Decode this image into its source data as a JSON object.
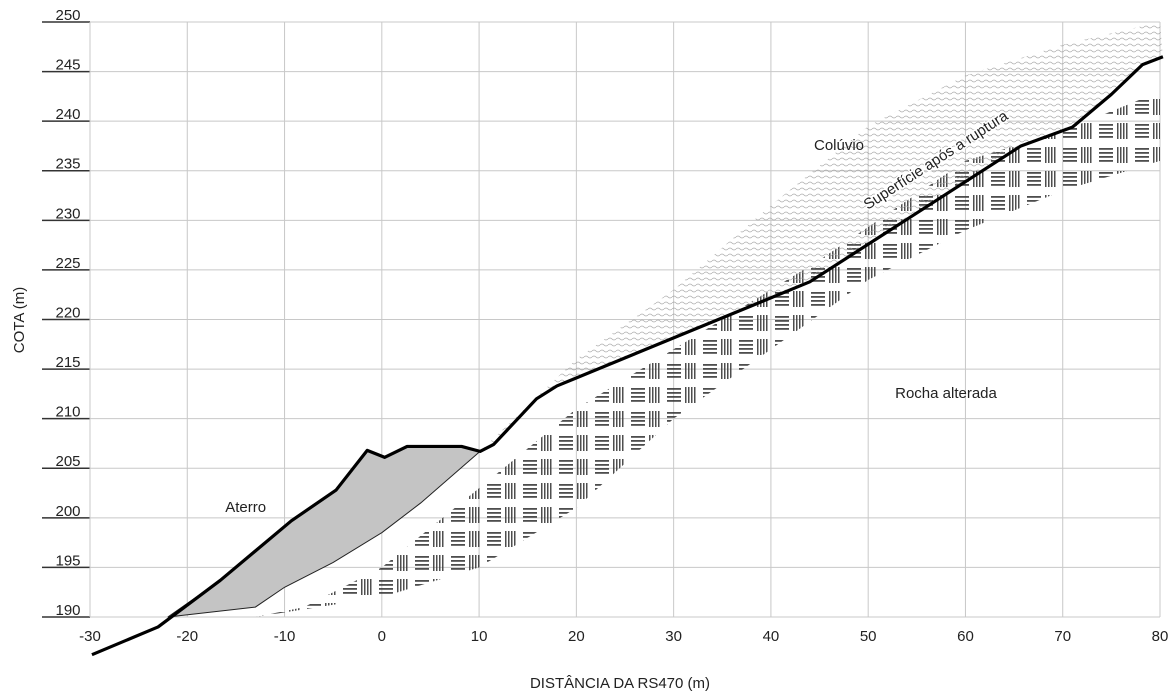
{
  "chart_data": {
    "type": "line",
    "x_label": "DISTÂNCIA DA RS470 (m)",
    "y_label": "COTA (m)",
    "xlim": [
      -30,
      80
    ],
    "ylim": [
      190,
      250
    ],
    "xticks": [
      -30,
      -20,
      -10,
      0,
      10,
      20,
      30,
      40,
      50,
      60,
      70,
      80
    ],
    "yticks": [
      190,
      195,
      200,
      205,
      210,
      215,
      220,
      225,
      230,
      235,
      240,
      245,
      250
    ],
    "grid": true,
    "series": [
      {
        "name": "Superfície após a ruptura",
        "color": "#000000",
        "x": [
          -29.8,
          -23,
          -16.6,
          -9.3,
          -4.7,
          -1.5,
          0.3,
          2.6,
          8.2,
          10.1,
          11.5,
          15.9,
          18,
          44,
          65.7,
          71,
          75,
          78.2,
          80.3
        ],
        "values": [
          186.2,
          189,
          193.7,
          199.7,
          202.8,
          206.8,
          206.1,
          207.2,
          207.2,
          206.7,
          207.4,
          212,
          213.3,
          223.8,
          237.5,
          239.4,
          242.7,
          245.7,
          246.5
        ]
      },
      {
        "name": "Aterro",
        "color": "#c4c4c4",
        "x": [
          -22,
          -16.6,
          -9.3,
          -4.7,
          -1.5,
          0.3,
          2.6,
          8.2,
          10.1,
          4,
          0,
          -5,
          -10,
          -13,
          -22
        ],
        "values": [
          190,
          193.7,
          199.7,
          202.8,
          206.8,
          206.1,
          207.2,
          207.2,
          206.7,
          201.5,
          198.5,
          195.5,
          193,
          191,
          190
        ]
      },
      {
        "name": "Colúvio",
        "color": "#9a9a9a",
        "x": [
          10.1,
          20,
          30,
          40,
          50,
          60,
          70,
          80,
          80.3,
          78.2,
          75,
          71,
          65.7,
          44,
          18,
          15.9,
          11.5
        ],
        "values": [
          206.7,
          216,
          223,
          231.5,
          239.5,
          244.6,
          247.7,
          250,
          246.5,
          245.7,
          242.7,
          239.4,
          237.5,
          223.8,
          213.3,
          212,
          207.4
        ]
      },
      {
        "name": "Rocha alterada",
        "color": "#3a3a3a",
        "x": [
          -13,
          0,
          10,
          20,
          30,
          40,
          50,
          60,
          70,
          80,
          80,
          70,
          60,
          45,
          30,
          20,
          10,
          0,
          -8
        ],
        "values": [
          190,
          192,
          195,
          201,
          210,
          217,
          224,
          229,
          233,
          236,
          243,
          239,
          236,
          226,
          217,
          211,
          203,
          195,
          191
        ]
      }
    ]
  }
}
